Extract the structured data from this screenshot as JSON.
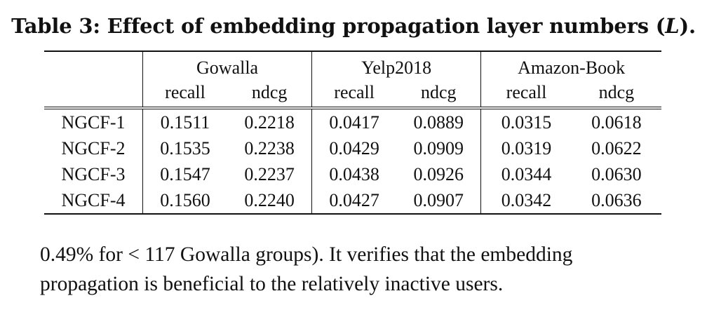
{
  "caption": {
    "prefix": "Table 3: Effect of embedding propagation layer numbers (",
    "variable": "L",
    "suffix": ")."
  },
  "table": {
    "groups": [
      "Gowalla",
      "Yelp2018",
      "Amazon-Book"
    ],
    "metrics": [
      "recall",
      "ndcg",
      "recall",
      "ndcg",
      "recall",
      "ndcg"
    ],
    "rows": [
      {
        "label": "NGCF-1",
        "values": [
          "0.1511",
          "0.2218",
          "0.0417",
          "0.0889",
          "0.0315",
          "0.0618"
        ],
        "bold": [
          false,
          false,
          false,
          false,
          false,
          false
        ]
      },
      {
        "label": "NGCF-2",
        "values": [
          "0.1535",
          "0.2238",
          "0.0429",
          "0.0909",
          "0.0319",
          "0.0622"
        ],
        "bold": [
          false,
          false,
          false,
          false,
          false,
          false
        ]
      },
      {
        "label": "NGCF-3",
        "values": [
          "0.1547",
          "0.2237",
          "0.0438",
          "0.0926",
          "0.0344",
          "0.0630"
        ],
        "bold": [
          false,
          false,
          true,
          true,
          true,
          false
        ]
      },
      {
        "label": "NGCF-4",
        "values": [
          "0.1560",
          "0.2240",
          "0.0427",
          "0.0907",
          "0.0342",
          "0.0636"
        ],
        "bold": [
          true,
          true,
          false,
          false,
          false,
          true
        ]
      }
    ]
  },
  "body_text": {
    "line1": "0.49% for < 117 Gowalla groups). It verifies that the embedding",
    "line2": "propagation is beneficial to the relatively inactive users."
  }
}
